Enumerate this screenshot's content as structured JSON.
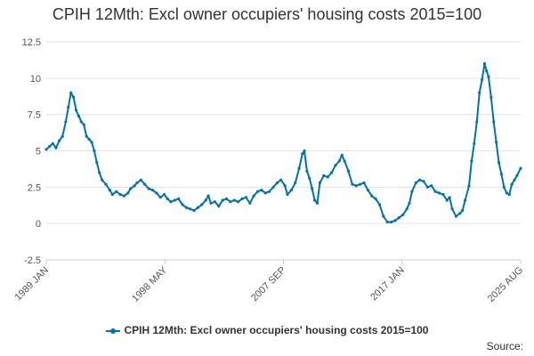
{
  "chart_data": {
    "type": "line",
    "title": "CPIH 12Mth: Excl owner occupiers' housing costs 2015=100",
    "xlabel": "",
    "ylabel": "",
    "x_tick_labels": [
      "1989 JAN",
      "1998 MAY",
      "2007 SEP",
      "2017 JAN",
      "2025 AUG"
    ],
    "y_ticks": [
      12.5,
      10,
      7.5,
      5,
      2.5,
      0,
      -2.5
    ],
    "y_tick_labels": [
      "12.5",
      "10",
      "7.5",
      "5",
      "2.5",
      "0",
      "-2.5"
    ],
    "ylim": [
      -2.5,
      12.5
    ],
    "xlim": [
      1989.0,
      2025.58
    ],
    "grid": "horizontal",
    "legend_position": "bottom",
    "series": [
      {
        "name": "CPIH 12Mth: Excl owner occupiers' housing costs 2015=100",
        "color": "#0072b2",
        "points": [
          [
            1989.0,
            5.1
          ],
          [
            1989.25,
            5.3
          ],
          [
            1989.5,
            5.5
          ],
          [
            1989.75,
            5.2
          ],
          [
            1990.0,
            5.7
          ],
          [
            1990.25,
            6.0
          ],
          [
            1990.5,
            7.0
          ],
          [
            1990.7,
            8.0
          ],
          [
            1990.9,
            9.0
          ],
          [
            1991.1,
            8.7
          ],
          [
            1991.3,
            7.8
          ],
          [
            1991.5,
            7.4
          ],
          [
            1991.7,
            7.0
          ],
          [
            1991.9,
            6.8
          ],
          [
            1992.1,
            6.0
          ],
          [
            1992.3,
            5.8
          ],
          [
            1992.5,
            5.6
          ],
          [
            1992.7,
            5.0
          ],
          [
            1992.9,
            4.2
          ],
          [
            1993.1,
            3.5
          ],
          [
            1993.3,
            3.0
          ],
          [
            1993.6,
            2.7
          ],
          [
            1993.9,
            2.3
          ],
          [
            1994.1,
            2.0
          ],
          [
            1994.4,
            2.2
          ],
          [
            1994.7,
            2.0
          ],
          [
            1995.0,
            1.9
          ],
          [
            1995.3,
            2.1
          ],
          [
            1995.5,
            2.4
          ],
          [
            1995.8,
            2.6
          ],
          [
            1996.0,
            2.8
          ],
          [
            1996.3,
            3.0
          ],
          [
            1996.6,
            2.7
          ],
          [
            1996.9,
            2.4
          ],
          [
            1997.2,
            2.3
          ],
          [
            1997.5,
            2.1
          ],
          [
            1997.8,
            1.8
          ],
          [
            1998.1,
            2.0
          ],
          [
            1998.35,
            1.7
          ],
          [
            1998.6,
            1.5
          ],
          [
            1998.9,
            1.6
          ],
          [
            1999.2,
            1.7
          ],
          [
            1999.5,
            1.3
          ],
          [
            1999.8,
            1.1
          ],
          [
            2000.1,
            1.0
          ],
          [
            2000.4,
            0.9
          ],
          [
            2000.7,
            1.1
          ],
          [
            2001.0,
            1.3
          ],
          [
            2001.3,
            1.6
          ],
          [
            2001.5,
            1.9
          ],
          [
            2001.7,
            1.4
          ],
          [
            2002.0,
            1.5
          ],
          [
            2002.3,
            1.2
          ],
          [
            2002.6,
            1.6
          ],
          [
            2002.9,
            1.7
          ],
          [
            2003.2,
            1.5
          ],
          [
            2003.5,
            1.6
          ],
          [
            2003.8,
            1.5
          ],
          [
            2004.1,
            1.7
          ],
          [
            2004.4,
            1.8
          ],
          [
            2004.7,
            1.4
          ],
          [
            2005.0,
            1.9
          ],
          [
            2005.3,
            2.2
          ],
          [
            2005.6,
            2.3
          ],
          [
            2005.9,
            2.1
          ],
          [
            2006.2,
            2.2
          ],
          [
            2006.5,
            2.5
          ],
          [
            2006.8,
            2.8
          ],
          [
            2007.1,
            3.0
          ],
          [
            2007.4,
            2.6
          ],
          [
            2007.6,
            2.0
          ],
          [
            2007.9,
            2.3
          ],
          [
            2008.2,
            2.8
          ],
          [
            2008.5,
            3.8
          ],
          [
            2008.75,
            4.8
          ],
          [
            2008.9,
            5.0
          ],
          [
            2009.1,
            3.6
          ],
          [
            2009.3,
            3.1
          ],
          [
            2009.5,
            2.4
          ],
          [
            2009.7,
            1.6
          ],
          [
            2009.9,
            1.4
          ],
          [
            2010.1,
            2.8
          ],
          [
            2010.4,
            3.3
          ],
          [
            2010.7,
            3.2
          ],
          [
            2011.0,
            3.5
          ],
          [
            2011.3,
            4.0
          ],
          [
            2011.6,
            4.3
          ],
          [
            2011.8,
            4.7
          ],
          [
            2012.0,
            4.3
          ],
          [
            2012.3,
            3.6
          ],
          [
            2012.6,
            2.7
          ],
          [
            2012.9,
            2.6
          ],
          [
            2013.2,
            2.7
          ],
          [
            2013.5,
            2.8
          ],
          [
            2013.8,
            2.3
          ],
          [
            2014.1,
            1.9
          ],
          [
            2014.4,
            1.7
          ],
          [
            2014.7,
            1.3
          ],
          [
            2015.0,
            0.5
          ],
          [
            2015.3,
            0.1
          ],
          [
            2015.6,
            0.1
          ],
          [
            2015.9,
            0.2
          ],
          [
            2016.2,
            0.4
          ],
          [
            2016.5,
            0.6
          ],
          [
            2016.8,
            1.0
          ],
          [
            2017.0,
            1.4
          ],
          [
            2017.2,
            2.2
          ],
          [
            2017.5,
            2.8
          ],
          [
            2017.8,
            3.0
          ],
          [
            2018.1,
            2.9
          ],
          [
            2018.4,
            2.5
          ],
          [
            2018.7,
            2.6
          ],
          [
            2019.0,
            2.2
          ],
          [
            2019.3,
            2.1
          ],
          [
            2019.6,
            2.0
          ],
          [
            2019.9,
            1.6
          ],
          [
            2020.1,
            1.8
          ],
          [
            2020.3,
            1.0
          ],
          [
            2020.6,
            0.5
          ],
          [
            2020.9,
            0.7
          ],
          [
            2021.1,
            0.9
          ],
          [
            2021.3,
            1.6
          ],
          [
            2021.6,
            2.6
          ],
          [
            2021.8,
            4.3
          ],
          [
            2022.0,
            5.5
          ],
          [
            2022.2,
            7.0
          ],
          [
            2022.4,
            9.0
          ],
          [
            2022.6,
            9.9
          ],
          [
            2022.8,
            11.0
          ],
          [
            2022.95,
            10.5
          ],
          [
            2023.1,
            10.1
          ],
          [
            2023.3,
            8.7
          ],
          [
            2023.5,
            7.0
          ],
          [
            2023.7,
            5.6
          ],
          [
            2023.9,
            4.2
          ],
          [
            2024.1,
            3.4
          ],
          [
            2024.3,
            2.5
          ],
          [
            2024.5,
            2.1
          ],
          [
            2024.7,
            2.0
          ],
          [
            2024.9,
            2.7
          ],
          [
            2025.1,
            3.0
          ],
          [
            2025.3,
            3.3
          ],
          [
            2025.58,
            3.8
          ]
        ]
      }
    ]
  },
  "source_label": "Source:"
}
